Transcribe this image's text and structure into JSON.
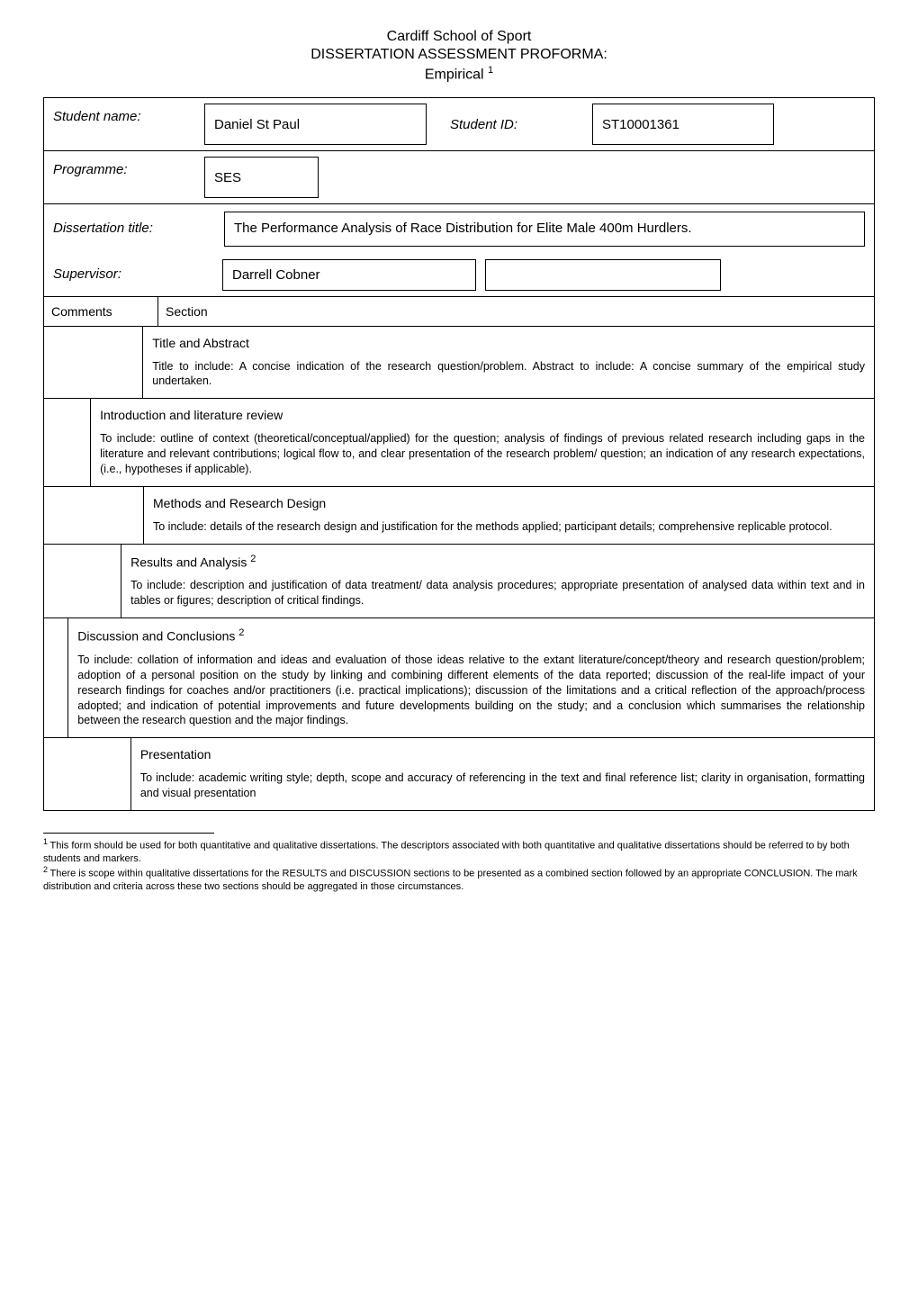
{
  "header": {
    "line1": "Cardiff School of Sport",
    "line2": "DISSERTATION ASSESSMENT PROFORMA:",
    "line3_prefix": "Empirical ",
    "line3_sup": "1"
  },
  "meta": {
    "student_name_label": "Student name:",
    "student_name": "Daniel St Paul",
    "student_id_label": "Student ID:",
    "student_id": "ST10001361",
    "programme_label": "Programme:",
    "programme": "SES",
    "dissertation_title_label": "Dissertation title:",
    "dissertation_title": "The Performance Analysis of Race Distribution for Elite Male 400m Hurdlers.",
    "supervisor_label": "Supervisor:",
    "supervisor": "Darrell Cobner"
  },
  "comments_header": {
    "col1": "Comments",
    "col2": "Section"
  },
  "sections": [
    {
      "title": "Title and Abstract",
      "body": "Title to include: A concise indication of the research question/problem. Abstract to include: A concise summary of the empirical study undertaken."
    },
    {
      "title": "Introduction and literature review",
      "body": "To include: outline of context (theoretical/conceptual/applied) for the question; analysis of findings of previous related research including gaps in the literature and relevant contributions; logical flow to, and clear presentation of the research problem/ question; an indication of any research expectations, (i.e., hypotheses if applicable)."
    },
    {
      "title": "Methods and Research Design",
      "body": "To include: details of the research design and justification for the methods applied; participant details; comprehensive replicable protocol."
    },
    {
      "title_html": "Results and Analysis <span class='sup'>2</span>",
      "body": "To include: description and justification of data treatment/ data analysis procedures; appropriate presentation of analysed data within text and in tables or figures; description of critical findings."
    },
    {
      "title_html": "Discussion and Conclusions <span class='sup'>2</span>",
      "body": "To include: collation of information and ideas and evaluation of those ideas relative to the extant literature/concept/theory and research question/problem; adoption of a personal position on the study by linking and combining different elements of the data reported; discussion of the real-life impact of your research findings for coaches and/or practitioners (i.e. practical implications); discussion of the limitations and a critical reflection of the approach/process adopted; and indication of potential improvements and future developments building on the study; and a conclusion which summarises the relationship between the research question and the major findings."
    },
    {
      "title": "Presentation",
      "body": "To include: academic writing style; depth, scope and accuracy of referencing in the text and final reference list; clarity in organisation, formatting and visual presentation"
    }
  ],
  "footnotes": [
    {
      "num": "1",
      "text": "This form should be used for both quantitative and qualitative dissertations. The descriptors associated with both quantitative and qualitative dissertations should be referred to by both students and markers."
    },
    {
      "num": "2",
      "text": "There is scope within qualitative dissertations for the RESULTS and DISCUSSION sections to be presented as a combined section followed by an appropriate CONCLUSION. The mark distribution and criteria across these two sections should be aggregated in those circumstances."
    }
  ],
  "colors": {
    "text": "#000000",
    "background": "#ffffff",
    "border": "#000000"
  }
}
